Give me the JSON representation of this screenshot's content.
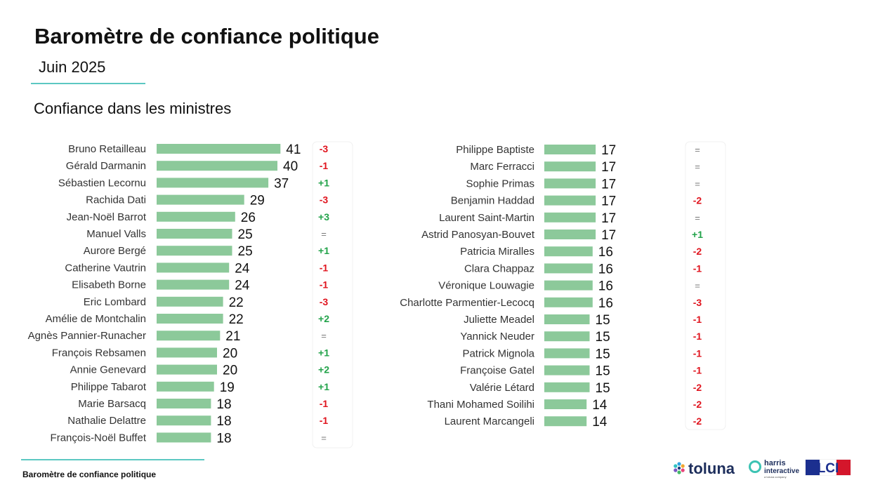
{
  "header": {
    "title": "Baromètre de confiance politique",
    "subtitle": "Juin 2025",
    "section": "Confiance dans les ministres"
  },
  "footer": {
    "text": "Baromètre de confiance politique"
  },
  "logos": {
    "toluna": "toluna",
    "harris_line1": "harris",
    "harris_line2": "interactive",
    "harris_tagline": "a toluna company",
    "lci": "LCI"
  },
  "colors": {
    "bar": "#8cc99a",
    "positive": "#22a34a",
    "negative": "#e0141e",
    "neutral": "#777777",
    "accent": "#5cc8c2"
  },
  "chart_data": [
    {
      "type": "bar",
      "orientation": "horizontal",
      "categories": [
        "Bruno Retailleau",
        "Gérald Darmanin",
        "Sébastien Lecornu",
        "Rachida Dati",
        "Jean-Noël Barrot",
        "Manuel Valls",
        "Aurore Bergé",
        "Catherine Vautrin",
        "Elisabeth Borne",
        "Eric Lombard",
        "Amélie de Montchalin",
        "Agnès Pannier-Runacher",
        "François Rebsamen",
        "Annie Genevard",
        "Philippe Tabarot",
        "Marie Barsacq",
        "Nathalie Delattre",
        "François-Noël Buffet"
      ],
      "values": [
        41,
        40,
        37,
        29,
        26,
        25,
        25,
        24,
        24,
        22,
        22,
        21,
        20,
        20,
        19,
        18,
        18,
        18
      ],
      "changes": [
        "-3",
        "-1",
        "+1",
        "-3",
        "+3",
        "=",
        "+1",
        "-1",
        "-1",
        "-3",
        "+2",
        "=",
        "+1",
        "+2",
        "+1",
        "-1",
        "-1",
        "="
      ],
      "xlim": [
        0,
        41
      ]
    },
    {
      "type": "bar",
      "orientation": "horizontal",
      "categories": [
        "Philippe Baptiste",
        "Marc Ferracci",
        "Sophie Primas",
        "Benjamin Haddad",
        "Laurent Saint-Martin",
        "Astrid Panosyan-Bouvet",
        "Patricia Miralles",
        "Clara Chappaz",
        "Véronique Louwagie",
        "Charlotte Parmentier-Lecocq",
        "Juliette Meadel",
        "Yannick Neuder",
        "Patrick Mignola",
        "Françoise Gatel",
        "Valérie Létard",
        "Thani Mohamed Soilihi",
        "Laurent Marcangeli"
      ],
      "values": [
        17,
        17,
        17,
        17,
        17,
        17,
        16,
        16,
        16,
        16,
        15,
        15,
        15,
        15,
        15,
        14,
        14
      ],
      "changes": [
        "=",
        "=",
        "=",
        "-2",
        "=",
        "+1",
        "-2",
        "-1",
        "=",
        "-3",
        "-1",
        "-1",
        "-1",
        "-1",
        "-2",
        "-2",
        "-2"
      ],
      "xlim": [
        0,
        41
      ]
    }
  ]
}
